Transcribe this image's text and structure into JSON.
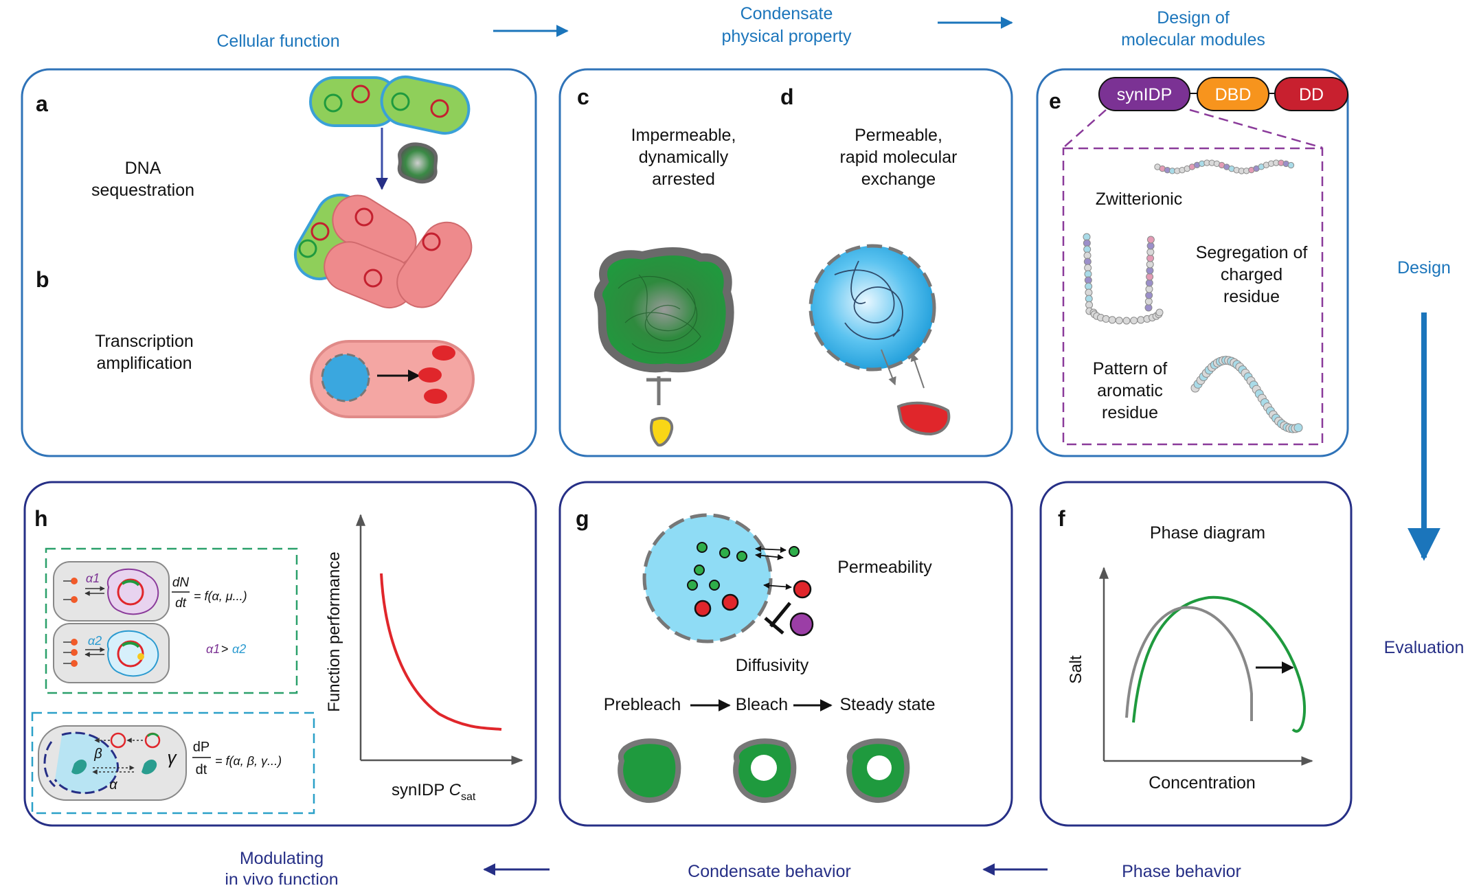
{
  "flow": {
    "cellular_function": "Cellular function",
    "condensate_property_1": "Condensate",
    "condensate_property_2": "physical property",
    "design_modules_1": "Design of",
    "design_modules_2": "molecular modules",
    "design": "Design",
    "evaluation": "Evaluation",
    "phase_behavior": "Phase behavior",
    "condensate_behavior": "Condensate behavior",
    "modulating_1": "Modulating",
    "modulating_2": "in vivo function"
  },
  "panels": {
    "a": {
      "letter": "a",
      "label_1": "DNA",
      "label_2": "sequestration"
    },
    "b": {
      "letter": "b",
      "label_1": "Transcription",
      "label_2": "amplification"
    },
    "c": {
      "letter": "c",
      "label_1": "Impermeable,",
      "label_2": "dynamically",
      "label_3": "arrested"
    },
    "d": {
      "letter": "d",
      "label_1": "Permeable,",
      "label_2": "rapid molecular",
      "label_3": "exchange"
    },
    "e": {
      "letter": "e",
      "modules": [
        "synIDP",
        "DBD",
        "DD"
      ],
      "zwitterionic": "Zwitterionic",
      "segregation_1": "Segregation of",
      "segregation_2": "charged",
      "segregation_3": "residue",
      "pattern_1": "Pattern of",
      "pattern_2": "aromatic",
      "pattern_3": "residue"
    },
    "f": {
      "letter": "f",
      "title": "Phase diagram",
      "xlabel": "Concentration",
      "ylabel": "Salt"
    },
    "g": {
      "letter": "g",
      "permeability": "Permeability",
      "diffusivity": "Diffusivity",
      "steps": [
        "Prebleach",
        "Bleach",
        "Steady state"
      ]
    },
    "h": {
      "letter": "h",
      "alpha1": "α1",
      "alpha2": "α2",
      "eq1_num": "dN",
      "eq1_den": "dt",
      "eq1_rhs": "= f(α, μ...)",
      "compare_a1": "α1",
      "compare_gt": " > ",
      "compare_a2": "α2",
      "beta": "β",
      "alpha": "α",
      "gamma": "γ",
      "eq2_num": "dP",
      "eq2_den": "dt",
      "eq2_rhs": "= f(α, β, γ...)",
      "ylabel": "Function performance",
      "xlabel_main": "synIDP ",
      "xlabel_c": "C",
      "xlabel_sub": "sat"
    }
  },
  "colors": {
    "light_blue_text": "#1b75bb",
    "dark_blue_text": "#262f86",
    "panel_top_border": "#2f73b8",
    "panel_bottom_border": "#262f86",
    "green": "#1f9a3e",
    "red": "#e0262b",
    "synidp": "#7b3294",
    "dbd": "#f7941d",
    "dd": "#c8202f"
  }
}
